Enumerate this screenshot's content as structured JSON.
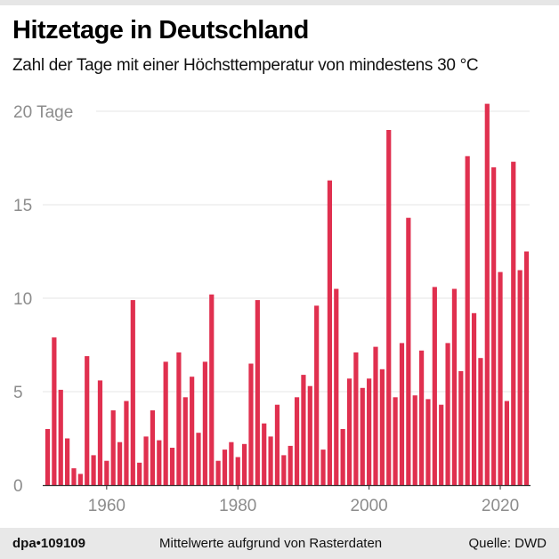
{
  "title": "Hitzetage in Deutschland",
  "subtitle": "Zahl der Tage mit einer Höchsttemperatur von mindestens 30 °C",
  "footer": {
    "id": "dpa•109109",
    "note": "Mittelwerte aufgrund von Rasterdaten",
    "source": "Quelle: DWD"
  },
  "colors": {
    "bar": "#e0304f",
    "grid": "#e4e4e4",
    "tick_label": "#8c8c8c"
  },
  "chart_data": {
    "type": "bar",
    "title": "Hitzetage in Deutschland",
    "ylabel_unit": "Tage",
    "ylim": [
      0,
      20
    ],
    "grid": true,
    "y_ticks": [
      0,
      5,
      10,
      15,
      20
    ],
    "y_tick_labels": [
      "0",
      "5",
      "10",
      "15",
      "20 Tage"
    ],
    "x_ticks": [
      1960,
      1980,
      2000,
      2020
    ],
    "x_tick_labels": [
      "1960",
      "1980",
      "2000",
      "2020"
    ],
    "x_start": 1951,
    "x_end": 2024,
    "years": [
      1951,
      1952,
      1953,
      1954,
      1955,
      1956,
      1957,
      1958,
      1959,
      1960,
      1961,
      1962,
      1963,
      1964,
      1965,
      1966,
      1967,
      1968,
      1969,
      1970,
      1971,
      1972,
      1973,
      1974,
      1975,
      1976,
      1977,
      1978,
      1979,
      1980,
      1981,
      1982,
      1983,
      1984,
      1985,
      1986,
      1987,
      1988,
      1989,
      1990,
      1991,
      1992,
      1993,
      1994,
      1995,
      1996,
      1997,
      1998,
      1999,
      2000,
      2001,
      2002,
      2003,
      2004,
      2005,
      2006,
      2007,
      2008,
      2009,
      2010,
      2011,
      2012,
      2013,
      2014,
      2015,
      2016,
      2017,
      2018,
      2019,
      2020,
      2021,
      2022,
      2023,
      2024
    ],
    "values": [
      3.0,
      7.9,
      5.1,
      2.5,
      0.9,
      0.6,
      6.9,
      1.6,
      5.6,
      1.3,
      4.0,
      2.3,
      4.5,
      9.9,
      1.2,
      2.6,
      4.0,
      2.4,
      6.6,
      2.0,
      7.1,
      4.7,
      5.8,
      2.8,
      6.6,
      10.2,
      1.3,
      1.9,
      2.3,
      1.5,
      2.2,
      6.5,
      9.9,
      3.3,
      2.6,
      4.3,
      1.6,
      2.1,
      4.7,
      5.9,
      5.3,
      9.6,
      1.9,
      16.3,
      10.5,
      3.0,
      5.7,
      7.1,
      5.2,
      5.7,
      7.4,
      6.2,
      19.0,
      4.7,
      7.6,
      14.3,
      4.8,
      7.2,
      4.6,
      10.6,
      4.3,
      7.6,
      10.5,
      6.1,
      17.6,
      9.2,
      6.8,
      20.4,
      17.0,
      11.4,
      4.5,
      17.3,
      11.5,
      12.5
    ]
  }
}
